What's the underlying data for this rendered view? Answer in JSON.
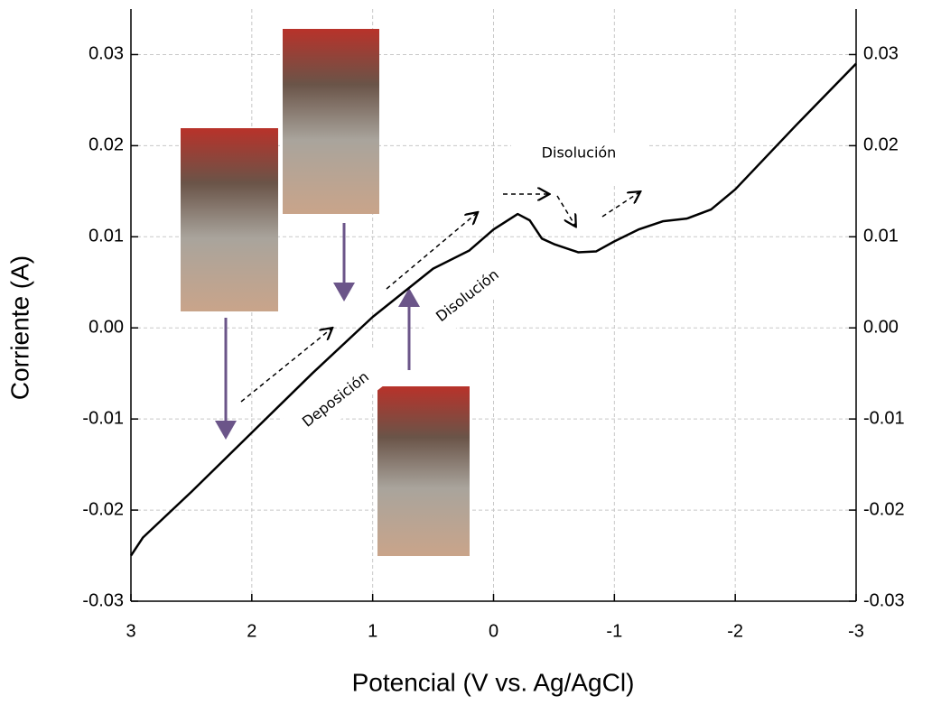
{
  "chart_data": {
    "type": "line",
    "x_label": "Potencial (V vs. Ag/AgCl)",
    "y_label": "Corriente (A)",
    "x": [
      3,
      2.9,
      2.5,
      2,
      1.5,
      1,
      0.5,
      0.2,
      0,
      -0.2,
      -0.3,
      -0.4,
      -0.5,
      -0.7,
      -0.85,
      -1,
      -1.2,
      -1.4,
      -1.6,
      -1.8,
      -2,
      -2.5,
      -3
    ],
    "values": [
      -0.025,
      -0.023,
      -0.018,
      -0.0115,
      -0.005,
      0.0012,
      0.0065,
      0.0085,
      0.0108,
      0.0125,
      0.0118,
      0.0098,
      0.0092,
      0.0083,
      0.0084,
      0.0095,
      0.0108,
      0.0117,
      0.012,
      0.013,
      0.0152,
      0.0222,
      0.029
    ],
    "color": "#000000",
    "xlim": [
      3,
      -3
    ],
    "xticks": [
      3,
      2,
      1,
      0,
      -1,
      -2,
      -3
    ],
    "ylim": [
      -0.03,
      0.035
    ],
    "yticks": [
      {
        "value": -0.03,
        "label": "-0.03"
      },
      {
        "value": -0.02,
        "label": "-0.02"
      },
      {
        "value": -0.01,
        "label": "-0.01"
      },
      {
        "value": 0,
        "label": "0.00"
      },
      {
        "value": 0.01,
        "label": "0.01"
      },
      {
        "value": 0.02,
        "label": "0.02"
      },
      {
        "value": 0.03,
        "label": "0.03"
      }
    ],
    "grid": true,
    "annotations": [
      "Disolución",
      "Deposición",
      "Disolución"
    ]
  }
}
